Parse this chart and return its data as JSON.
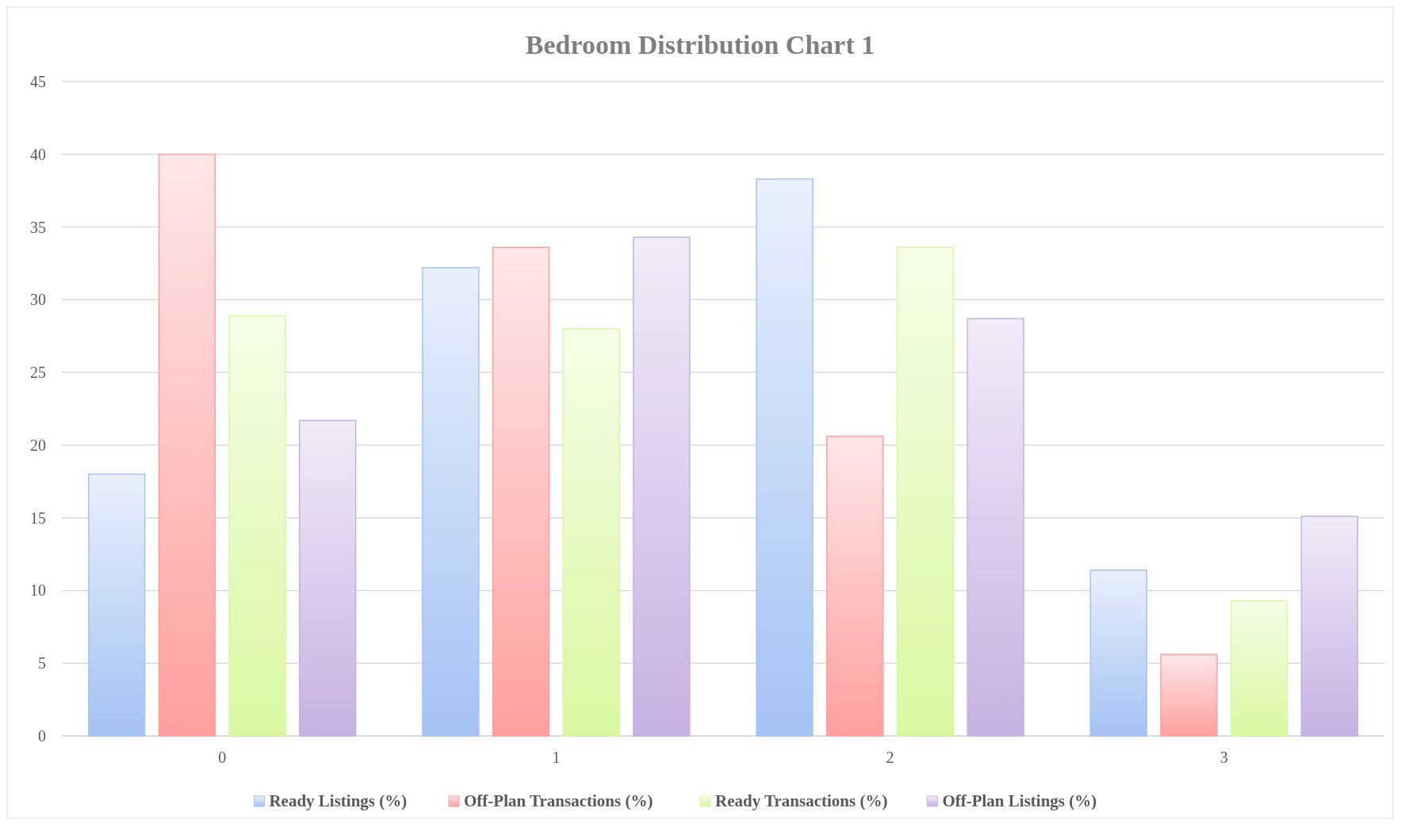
{
  "chart_data": {
    "type": "bar",
    "title": "Bedroom Distribution Chart 1",
    "categories": [
      "0",
      "1",
      "2",
      "3"
    ],
    "series": [
      {
        "name": "Ready Listings (%)",
        "color": "#a4c2f4",
        "values": [
          18.0,
          32.2,
          38.3,
          11.4
        ]
      },
      {
        "name": "Off-Plan Transactions (%)",
        "color": "#ff9f9f",
        "values": [
          40.0,
          33.6,
          20.6,
          5.6
        ]
      },
      {
        "name": "Ready Transactions (%)",
        "color": "#d8f8a0",
        "values": [
          28.9,
          28.0,
          33.6,
          9.3
        ]
      },
      {
        "name": "Off-Plan Listings (%)",
        "color": "#c7b0e3",
        "values": [
          21.7,
          34.3,
          28.7,
          15.1
        ]
      }
    ],
    "ylim": [
      0,
      45
    ],
    "yticks": [
      0,
      5,
      10,
      15,
      20,
      25,
      30,
      35,
      40,
      45
    ],
    "grid": "y",
    "legend": "bottom"
  }
}
